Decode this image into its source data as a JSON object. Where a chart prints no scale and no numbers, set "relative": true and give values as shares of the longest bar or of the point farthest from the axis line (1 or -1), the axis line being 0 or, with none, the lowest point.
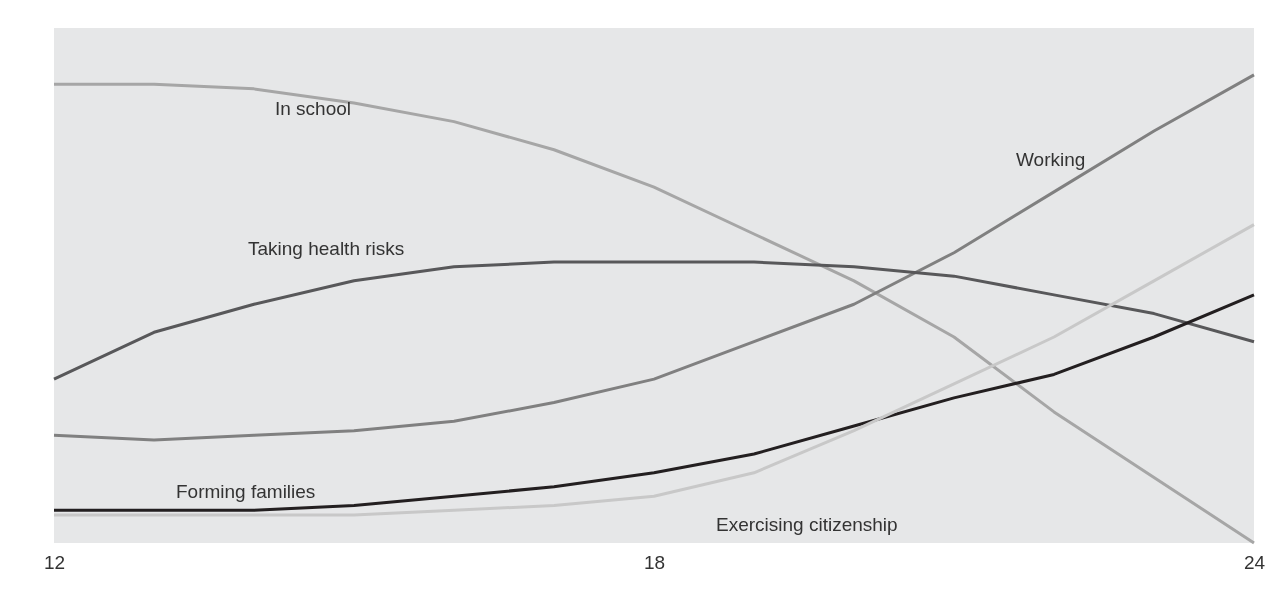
{
  "chart_data": {
    "type": "line",
    "relative": true,
    "legend": false,
    "grid": false,
    "x": [
      12,
      13,
      14,
      15,
      16,
      17,
      18,
      19,
      20,
      21,
      22,
      23,
      24
    ],
    "xlim": [
      12,
      24
    ],
    "xticks": [
      12,
      18,
      24
    ],
    "series": [
      {
        "name": "In school",
        "color": "#a6a6a6",
        "values": [
          0.98,
          0.98,
          0.97,
          0.94,
          0.9,
          0.84,
          0.76,
          0.66,
          0.56,
          0.44,
          0.28,
          0.14,
          0
        ]
      },
      {
        "name": "Working",
        "color": "#808080",
        "values": [
          0.23,
          0.22,
          0.23,
          0.24,
          0.26,
          0.3,
          0.35,
          0.43,
          0.51,
          0.62,
          0.75,
          0.88,
          1
        ]
      },
      {
        "name": "Taking health risks",
        "color": "#58585a",
        "values": [
          0.35,
          0.45,
          0.51,
          0.56,
          0.59,
          0.6,
          0.6,
          0.6,
          0.59,
          0.57,
          0.53,
          0.49,
          0.43
        ]
      },
      {
        "name": "Forming families",
        "color": "#231f20",
        "values": [
          0.07,
          0.07,
          0.07,
          0.08,
          0.1,
          0.12,
          0.15,
          0.19,
          0.25,
          0.31,
          0.36,
          0.44,
          0.53
        ]
      },
      {
        "name": "Exercising citizenship",
        "color": "#c8c8c8",
        "values": [
          0.06,
          0.06,
          0.06,
          0.06,
          0.07,
          0.08,
          0.1,
          0.15,
          0.24,
          0.34,
          0.44,
          0.56,
          0.68
        ]
      }
    ]
  }
}
